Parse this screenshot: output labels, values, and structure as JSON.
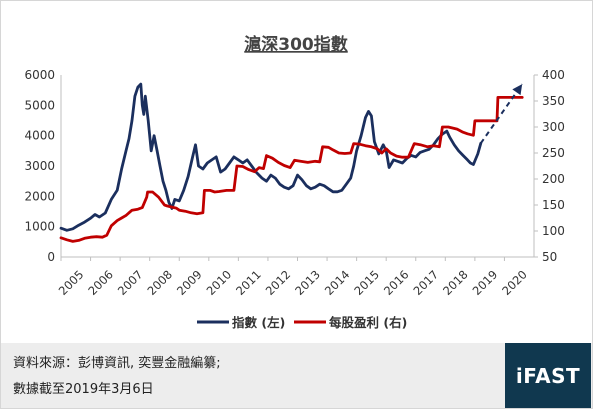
{
  "chart_data": {
    "type": "line",
    "title": "滬深300指數",
    "x_ticks": [
      "2005",
      "2006",
      "2007",
      "2008",
      "2009",
      "2010",
      "2011",
      "2012",
      "2013",
      "2014",
      "2015",
      "2016",
      "2017",
      "2018",
      "2019",
      "2020"
    ],
    "y_left": {
      "min": 0,
      "max": 6000,
      "ticks": [
        "0",
        "1000",
        "2000",
        "3000",
        "4000",
        "5000",
        "6000"
      ]
    },
    "y_right": {
      "min": 50,
      "max": 400,
      "ticks": [
        "50",
        "100",
        "150",
        "200",
        "250",
        "300",
        "350",
        "400"
      ]
    },
    "grid": false,
    "legend_position": "bottom",
    "series": [
      {
        "name": "指數 (左)",
        "axis": "left",
        "color": "#1b2f5e",
        "points": [
          [
            2005.0,
            950
          ],
          [
            2005.2,
            880
          ],
          [
            2005.4,
            930
          ],
          [
            2005.6,
            1050
          ],
          [
            2005.8,
            1150
          ],
          [
            2006.0,
            1280
          ],
          [
            2006.15,
            1400
          ],
          [
            2006.3,
            1320
          ],
          [
            2006.5,
            1450
          ],
          [
            2006.7,
            1900
          ],
          [
            2006.9,
            2200
          ],
          [
            2007.05,
            2900
          ],
          [
            2007.2,
            3500
          ],
          [
            2007.3,
            3900
          ],
          [
            2007.4,
            4500
          ],
          [
            2007.5,
            5300
          ],
          [
            2007.6,
            5600
          ],
          [
            2007.7,
            5700
          ],
          [
            2007.75,
            5000
          ],
          [
            2007.8,
            4700
          ],
          [
            2007.85,
            5300
          ],
          [
            2007.95,
            4500
          ],
          [
            2008.05,
            3500
          ],
          [
            2008.15,
            4000
          ],
          [
            2008.25,
            3500
          ],
          [
            2008.35,
            3000
          ],
          [
            2008.45,
            2500
          ],
          [
            2008.55,
            2200
          ],
          [
            2008.65,
            1800
          ],
          [
            2008.75,
            1600
          ],
          [
            2008.85,
            1900
          ],
          [
            2009.0,
            1850
          ],
          [
            2009.15,
            2200
          ],
          [
            2009.3,
            2650
          ],
          [
            2009.45,
            3300
          ],
          [
            2009.55,
            3700
          ],
          [
            2009.65,
            3000
          ],
          [
            2009.8,
            2900
          ],
          [
            2009.95,
            3100
          ],
          [
            2010.1,
            3200
          ],
          [
            2010.25,
            3300
          ],
          [
            2010.4,
            2800
          ],
          [
            2010.55,
            2900
          ],
          [
            2010.7,
            3100
          ],
          [
            2010.85,
            3300
          ],
          [
            2011.0,
            3200
          ],
          [
            2011.15,
            3100
          ],
          [
            2011.3,
            3200
          ],
          [
            2011.45,
            3000
          ],
          [
            2011.6,
            2800
          ],
          [
            2011.8,
            2600
          ],
          [
            2011.95,
            2500
          ],
          [
            2012.1,
            2700
          ],
          [
            2012.25,
            2600
          ],
          [
            2012.4,
            2400
          ],
          [
            2012.55,
            2300
          ],
          [
            2012.7,
            2250
          ],
          [
            2012.85,
            2350
          ],
          [
            2013.0,
            2700
          ],
          [
            2013.15,
            2550
          ],
          [
            2013.3,
            2350
          ],
          [
            2013.45,
            2250
          ],
          [
            2013.6,
            2300
          ],
          [
            2013.75,
            2400
          ],
          [
            2013.9,
            2350
          ],
          [
            2014.05,
            2250
          ],
          [
            2014.2,
            2150
          ],
          [
            2014.35,
            2150
          ],
          [
            2014.5,
            2200
          ],
          [
            2014.65,
            2400
          ],
          [
            2014.8,
            2600
          ],
          [
            2014.9,
            3000
          ],
          [
            2015.0,
            3500
          ],
          [
            2015.15,
            4000
          ],
          [
            2015.3,
            4600
          ],
          [
            2015.4,
            4800
          ],
          [
            2015.5,
            4650
          ],
          [
            2015.6,
            3800
          ],
          [
            2015.75,
            3400
          ],
          [
            2015.9,
            3700
          ],
          [
            2016.0,
            3500
          ],
          [
            2016.1,
            2950
          ],
          [
            2016.25,
            3200
          ],
          [
            2016.4,
            3150
          ],
          [
            2016.55,
            3100
          ],
          [
            2016.7,
            3250
          ],
          [
            2016.85,
            3350
          ],
          [
            2017.0,
            3300
          ],
          [
            2017.15,
            3450
          ],
          [
            2017.3,
            3500
          ],
          [
            2017.45,
            3550
          ],
          [
            2017.6,
            3700
          ],
          [
            2017.75,
            3900
          ],
          [
            2017.9,
            4050
          ],
          [
            2018.05,
            4150
          ],
          [
            2018.15,
            3950
          ],
          [
            2018.3,
            3700
          ],
          [
            2018.45,
            3500
          ],
          [
            2018.6,
            3350
          ],
          [
            2018.75,
            3200
          ],
          [
            2018.85,
            3100
          ],
          [
            2018.95,
            3050
          ],
          [
            2019.1,
            3400
          ],
          [
            2019.2,
            3750
          ]
        ]
      },
      {
        "name": "每股盈利 (右)",
        "axis": "right",
        "color": "#c00000",
        "points": [
          [
            2005.0,
            87
          ],
          [
            2005.2,
            83
          ],
          [
            2005.4,
            80
          ],
          [
            2005.6,
            82
          ],
          [
            2005.8,
            86
          ],
          [
            2006.0,
            88
          ],
          [
            2006.2,
            89
          ],
          [
            2006.4,
            88
          ],
          [
            2006.55,
            92
          ],
          [
            2006.7,
            110
          ],
          [
            2006.9,
            120
          ],
          [
            2007.05,
            125
          ],
          [
            2007.2,
            130
          ],
          [
            2007.4,
            140
          ],
          [
            2007.6,
            142
          ],
          [
            2007.75,
            145
          ],
          [
            2007.9,
            165
          ],
          [
            2007.93,
            175
          ],
          [
            2008.1,
            175
          ],
          [
            2008.3,
            165
          ],
          [
            2008.5,
            150
          ],
          [
            2008.6,
            148
          ],
          [
            2008.75,
            146
          ],
          [
            2008.9,
            144
          ],
          [
            2009.0,
            140
          ],
          [
            2009.2,
            138
          ],
          [
            2009.4,
            135
          ],
          [
            2009.6,
            133
          ],
          [
            2009.8,
            135
          ],
          [
            2009.85,
            178
          ],
          [
            2010.05,
            178
          ],
          [
            2010.2,
            175
          ],
          [
            2010.35,
            176
          ],
          [
            2010.6,
            178
          ],
          [
            2010.85,
            178
          ],
          [
            2010.95,
            225
          ],
          [
            2011.15,
            224
          ],
          [
            2011.35,
            218
          ],
          [
            2011.55,
            214
          ],
          [
            2011.7,
            222
          ],
          [
            2011.85,
            220
          ],
          [
            2011.95,
            245
          ],
          [
            2012.15,
            240
          ],
          [
            2012.35,
            232
          ],
          [
            2012.55,
            226
          ],
          [
            2012.75,
            222
          ],
          [
            2012.9,
            236
          ],
          [
            2013.1,
            234
          ],
          [
            2013.35,
            232
          ],
          [
            2013.6,
            234
          ],
          [
            2013.75,
            233
          ],
          [
            2013.85,
            262
          ],
          [
            2014.05,
            261
          ],
          [
            2014.2,
            256
          ],
          [
            2014.4,
            250
          ],
          [
            2014.6,
            249
          ],
          [
            2014.8,
            250
          ],
          [
            2014.9,
            268
          ],
          [
            2015.1,
            267
          ],
          [
            2015.3,
            264
          ],
          [
            2015.5,
            262
          ],
          [
            2015.7,
            258
          ],
          [
            2015.85,
            250
          ],
          [
            2016.0,
            258
          ],
          [
            2016.15,
            250
          ],
          [
            2016.35,
            244
          ],
          [
            2016.55,
            242
          ],
          [
            2016.75,
            242
          ],
          [
            2016.95,
            268
          ],
          [
            2017.15,
            266
          ],
          [
            2017.4,
            262
          ],
          [
            2017.6,
            264
          ],
          [
            2017.8,
            262
          ],
          [
            2017.9,
            300
          ],
          [
            2018.1,
            300
          ],
          [
            2018.4,
            296
          ],
          [
            2018.6,
            290
          ],
          [
            2018.75,
            287
          ],
          [
            2018.95,
            284
          ],
          [
            2019.0,
            312
          ],
          [
            2019.3,
            312
          ],
          [
            2019.6,
            312
          ],
          [
            2019.75,
            312
          ],
          [
            2019.78,
            357
          ],
          [
            2020.0,
            357
          ],
          [
            2020.3,
            357
          ],
          [
            2020.6,
            357
          ]
        ]
      }
    ],
    "trend_arrow": {
      "color": "#1b2f5e",
      "style": "dashed",
      "from": [
        2019.2,
        3750
      ],
      "to": [
        2020.6,
        5700
      ]
    },
    "legend": [
      {
        "label": "指數 (左)",
        "color": "#1b2f5e"
      },
      {
        "label": "每股盈利 (右)",
        "color": "#c00000"
      }
    ]
  },
  "footer": {
    "source": "資料來源：彭博資訊, 奕豐金融編纂;",
    "date": "數據截至2019年3月6日",
    "logo": "iFAST"
  }
}
